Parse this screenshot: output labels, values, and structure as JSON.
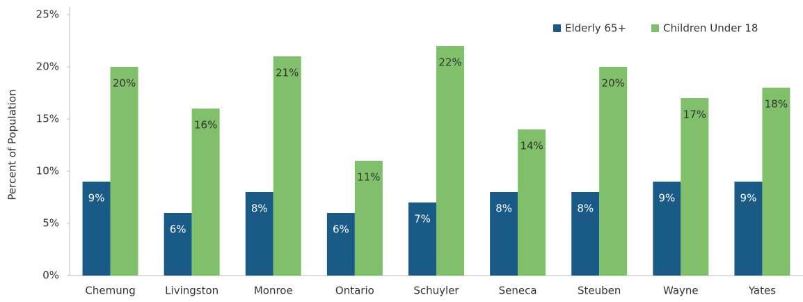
{
  "chart_data": {
    "type": "bar",
    "y_label": "Percent of Population",
    "categories": [
      "Chemung",
      "Livingston",
      "Monroe",
      "Ontario",
      "Schuyler",
      "Seneca",
      "Steuben",
      "Wayne",
      "Yates"
    ],
    "series": [
      {
        "name": "Elderly 65+",
        "color": "#1a5a87",
        "values": [
          9,
          6,
          8,
          6,
          7,
          8,
          8,
          9,
          9
        ],
        "value_labels": [
          "9%",
          "6%",
          "8%",
          "6%",
          "7%",
          "8%",
          "8%",
          "9%",
          "9%"
        ]
      },
      {
        "name": "Children Under 18",
        "color": "#80c06a",
        "values": [
          20,
          16,
          21,
          11,
          22,
          14,
          20,
          17,
          18
        ],
        "value_labels": [
          "20%",
          "16%",
          "21%",
          "11%",
          "22%",
          "14%",
          "20%",
          "17%",
          "18%"
        ]
      }
    ],
    "ylim": [
      0,
      25
    ],
    "yticks": [
      {
        "value": 0,
        "label": "0%"
      },
      {
        "value": 5,
        "label": "5%"
      },
      {
        "value": 10,
        "label": "10%"
      },
      {
        "value": 15,
        "label": "15%"
      },
      {
        "value": 20,
        "label": "20%"
      },
      {
        "value": 25,
        "label": "25%"
      }
    ],
    "legend": "upper right"
  }
}
